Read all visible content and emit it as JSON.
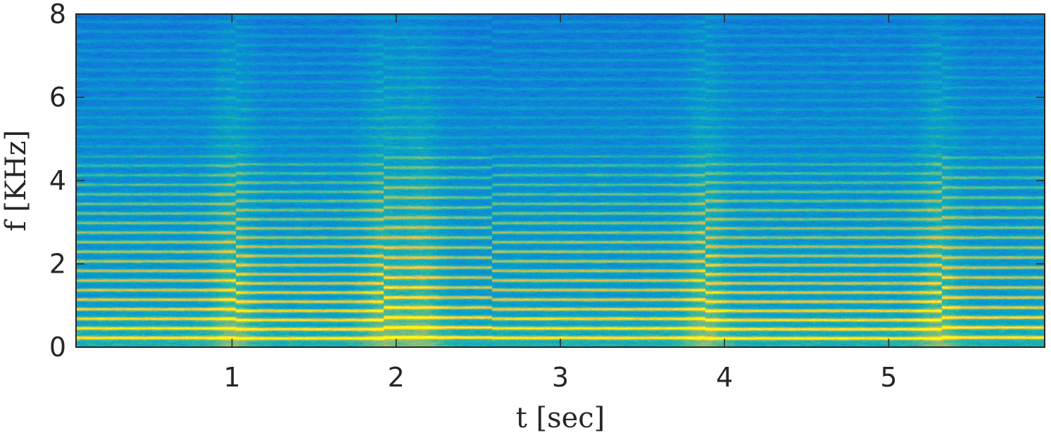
{
  "chart_data": {
    "type": "heatmap",
    "subtype": "spectrogram",
    "xlabel": "t [sec]",
    "ylabel": "f [KHz]",
    "xlim": [
      0.05,
      5.95
    ],
    "ylim": [
      0,
      8
    ],
    "x_ticks": [
      1,
      2,
      3,
      4,
      5
    ],
    "y_ticks": [
      0,
      2,
      4,
      6,
      8
    ],
    "grid": false,
    "colormap": "parula",
    "colors": {
      "low": "#1f8ee0",
      "mid": "#23b59a",
      "high": "#f9e233",
      "axis": "#262626"
    },
    "fundamental_khz": 0.23,
    "harmonic_strong_limit_khz": 4.6,
    "segments": [
      {
        "t_start": 0.05,
        "t_end": 1.02,
        "fundamental_khz": 0.23
      },
      {
        "t_start": 1.02,
        "t_end": 1.92,
        "fundamental_khz": 0.22
      },
      {
        "t_start": 1.92,
        "t_end": 2.58,
        "fundamental_khz": 0.24
      },
      {
        "t_start": 2.58,
        "t_end": 3.88,
        "fundamental_khz": 0.23
      },
      {
        "t_start": 3.88,
        "t_end": 5.32,
        "fundamental_khz": 0.22
      },
      {
        "t_start": 5.32,
        "t_end": 5.95,
        "fundamental_khz": 0.24
      }
    ],
    "broadband_onsets_sec": [
      1.0,
      1.92,
      2.15,
      3.88,
      5.3
    ],
    "harmonic_bands_khz": [
      0.23,
      0.46,
      0.69,
      0.92,
      1.15,
      1.38,
      1.61,
      1.84,
      2.07,
      2.3,
      2.53,
      2.76,
      2.99,
      3.22,
      3.45,
      3.68,
      3.91,
      4.14,
      4.37
    ]
  }
}
